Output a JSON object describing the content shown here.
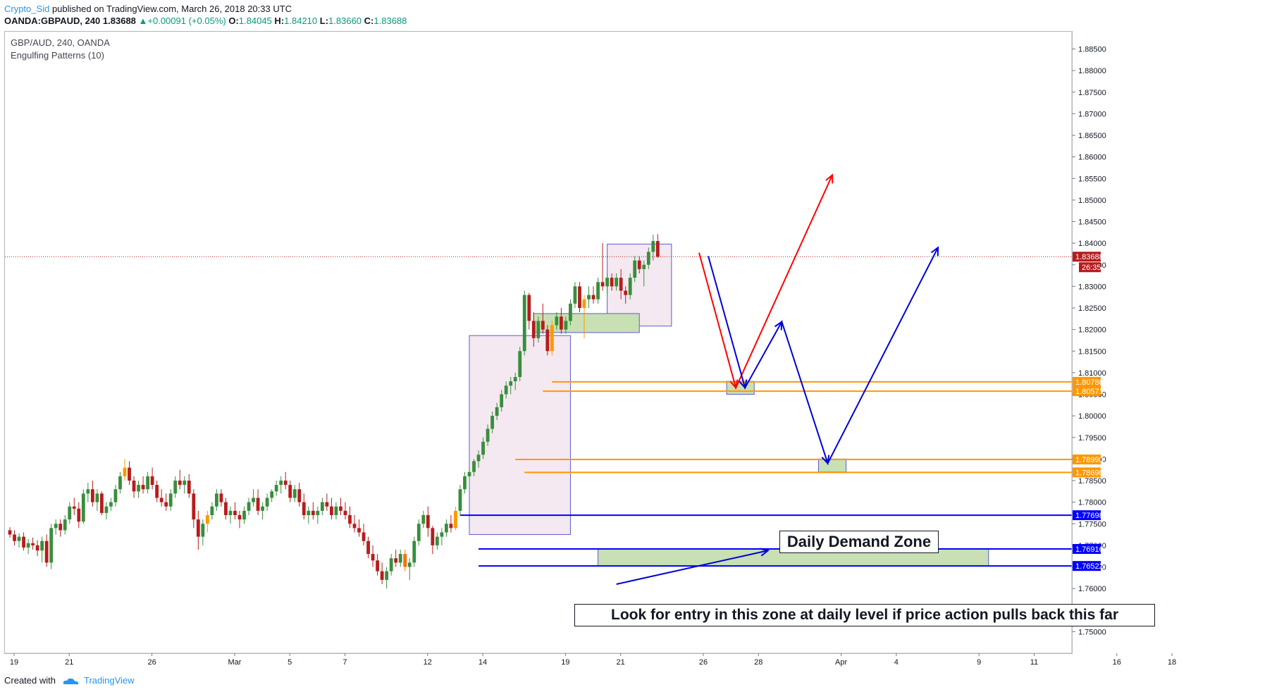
{
  "header": {
    "author": "Crypto_Sid",
    "published": "published on TradingView.com, March 26, 2018 20:33 UTC",
    "symbol": "OANDA:GBPAUD, 240",
    "last": "1.83688",
    "change": "▲+0.00091 (+0.05%)",
    "o_label": "O:",
    "o": "1.84045",
    "h_label": "H:",
    "h": "1.84210",
    "l_label": "L:",
    "l": "1.83660",
    "c_label": "C:",
    "c": "1.83688"
  },
  "legend": {
    "series": "GBP/AUD, 240, OANDA",
    "indicator": "Engulfing Patterns (10)"
  },
  "footer": {
    "created_with": "Created with",
    "brand": "TradingView"
  },
  "annotations": {
    "demand_zone": "Daily Demand Zone",
    "entry_note": "Look for entry in this zone at daily level if price action pulls back this far"
  },
  "chart_data": {
    "type": "candlestick",
    "title": "",
    "ylim": [
      1.745,
      1.889
    ],
    "price_ticks": [
      1.885,
      1.88,
      1.875,
      1.87,
      1.865,
      1.86,
      1.855,
      1.85,
      1.845,
      1.84,
      1.835,
      1.83,
      1.825,
      1.82,
      1.815,
      1.81,
      1.805,
      1.8,
      1.795,
      1.79,
      1.785,
      1.78,
      1.775,
      1.77,
      1.765,
      1.76,
      1.755,
      1.75
    ],
    "price_tick_labels": [
      "1.88500",
      "1.88000",
      "1.87500",
      "1.87000",
      "1.86500",
      "1.86000",
      "1.85500",
      "1.85000",
      "1.84500",
      "1.84000",
      "1.83500",
      "1.83000",
      "1.82500",
      "1.82000",
      "1.81500",
      "1.81000",
      "1.80500",
      "1.80000",
      "1.79500",
      "1.79000",
      "1.78500",
      "1.78000",
      "1.77500",
      "1.77000",
      "1.76500",
      "1.76000",
      "1.75500",
      "1.75000"
    ],
    "time_ticks": [
      "19",
      "21",
      "26",
      "Mar",
      "5",
      "7",
      "12",
      "14",
      "19",
      "21",
      "26",
      "28",
      "Apr",
      "4",
      "9",
      "11",
      "16",
      "18"
    ],
    "time_tick_bars": [
      0,
      12,
      30,
      48,
      60,
      72,
      90,
      102,
      120,
      132,
      150,
      162,
      180,
      192,
      210,
      222,
      240,
      252
    ],
    "current_price": 1.83688,
    "current_price_label": "1.83688",
    "countdown": "26:35",
    "levels": [
      {
        "price": 1.80788,
        "label": "1.80788",
        "color": "#ff9800"
      },
      {
        "price": 1.80571,
        "label": "1.80571",
        "color": "#ff9800"
      },
      {
        "price": 1.7899,
        "label": "1.78990",
        "color": "#ff9800"
      },
      {
        "price": 1.7869,
        "label": "1.78690",
        "color": "#ff9800"
      },
      {
        "price": 1.77698,
        "label": "1.77698",
        "color": "#0000ff"
      },
      {
        "price": 1.76916,
        "label": "1.76916",
        "color": "#0000ff"
      },
      {
        "price": 1.76522,
        "label": "1.76522",
        "color": "#0000ff"
      }
    ],
    "colors": {
      "up": "#388e3c",
      "down": "#b71c1c",
      "engulfing_up": "#ff9800",
      "engulfing_down": "#ff6d00",
      "zone_fill": "#c8e0b4",
      "box_fill": "#f3e5ef",
      "box_stroke": "#5c5cd6",
      "bear_arrow": "#ff0000",
      "bull_arrow": "#0000d8"
    },
    "candles": [
      [
        1.7735,
        1.7742,
        1.7718,
        1.7725
      ],
      [
        1.7725,
        1.7735,
        1.77,
        1.771
      ],
      [
        1.771,
        1.7728,
        1.7695,
        1.772
      ],
      [
        1.772,
        1.773,
        1.7688,
        1.7695
      ],
      [
        1.7695,
        1.7715,
        1.768,
        1.7705
      ],
      [
        1.7705,
        1.7718,
        1.769,
        1.77
      ],
      [
        1.77,
        1.7712,
        1.7675,
        1.7688
      ],
      [
        1.7688,
        1.772,
        1.766,
        1.771
      ],
      [
        1.771,
        1.7725,
        1.765,
        1.766
      ],
      [
        1.766,
        1.775,
        1.7645,
        1.774
      ],
      [
        1.774,
        1.776,
        1.7725,
        1.775
      ],
      [
        1.775,
        1.776,
        1.772,
        1.7735
      ],
      [
        1.7735,
        1.777,
        1.7725,
        1.776
      ],
      [
        1.776,
        1.78,
        1.775,
        1.779
      ],
      [
        1.779,
        1.781,
        1.777,
        1.7785
      ],
      [
        1.7785,
        1.78,
        1.774,
        1.7755
      ],
      [
        1.7755,
        1.783,
        1.775,
        1.782
      ],
      [
        1.782,
        1.7845,
        1.78,
        1.783
      ],
      [
        1.783,
        1.785,
        1.779,
        1.78
      ],
      [
        1.78,
        1.783,
        1.778,
        1.782
      ],
      [
        1.782,
        1.7825,
        1.777,
        1.7775
      ],
      [
        1.7775,
        1.78,
        1.776,
        1.779
      ],
      [
        1.779,
        1.781,
        1.778,
        1.78
      ],
      [
        1.78,
        1.784,
        1.779,
        1.783
      ],
      [
        1.783,
        1.787,
        1.782,
        1.786
      ],
      [
        1.786,
        1.79,
        1.785,
        1.788
      ],
      [
        1.788,
        1.7895,
        1.784,
        1.785
      ],
      [
        1.785,
        1.786,
        1.781,
        1.7825
      ],
      [
        1.7825,
        1.785,
        1.781,
        1.784
      ],
      [
        1.784,
        1.786,
        1.782,
        1.783
      ],
      [
        1.783,
        1.787,
        1.782,
        1.786
      ],
      [
        1.786,
        1.788,
        1.783,
        1.784
      ],
      [
        1.784,
        1.785,
        1.78,
        1.781
      ],
      [
        1.781,
        1.783,
        1.779,
        1.78
      ],
      [
        1.78,
        1.782,
        1.778,
        1.779
      ],
      [
        1.779,
        1.783,
        1.778,
        1.782
      ],
      [
        1.782,
        1.786,
        1.781,
        1.785
      ],
      [
        1.785,
        1.7875,
        1.783,
        1.784
      ],
      [
        1.784,
        1.786,
        1.782,
        1.785
      ],
      [
        1.785,
        1.7865,
        1.781,
        1.782
      ],
      [
        1.782,
        1.783,
        1.774,
        1.776
      ],
      [
        1.776,
        1.778,
        1.769,
        1.772
      ],
      [
        1.772,
        1.776,
        1.77,
        1.775
      ],
      [
        1.775,
        1.778,
        1.773,
        1.777
      ],
      [
        1.777,
        1.78,
        1.776,
        1.779
      ],
      [
        1.779,
        1.783,
        1.778,
        1.782
      ],
      [
        1.782,
        1.783,
        1.779,
        1.78
      ],
      [
        1.78,
        1.781,
        1.776,
        1.777
      ],
      [
        1.777,
        1.779,
        1.775,
        1.778
      ],
      [
        1.778,
        1.78,
        1.776,
        1.777
      ],
      [
        1.777,
        1.778,
        1.774,
        1.776
      ],
      [
        1.776,
        1.779,
        1.775,
        1.778
      ],
      [
        1.778,
        1.781,
        1.777,
        1.78
      ],
      [
        1.78,
        1.783,
        1.779,
        1.781
      ],
      [
        1.781,
        1.783,
        1.777,
        1.778
      ],
      [
        1.778,
        1.78,
        1.776,
        1.779
      ],
      [
        1.779,
        1.782,
        1.778,
        1.781
      ],
      [
        1.781,
        1.783,
        1.78,
        1.7825
      ],
      [
        1.7825,
        1.785,
        1.7815,
        1.784
      ],
      [
        1.784,
        1.786,
        1.782,
        1.785
      ],
      [
        1.785,
        1.787,
        1.783,
        1.784
      ],
      [
        1.784,
        1.785,
        1.78,
        1.781
      ],
      [
        1.781,
        1.784,
        1.78,
        1.783
      ],
      [
        1.783,
        1.7845,
        1.779,
        1.78
      ],
      [
        1.78,
        1.782,
        1.776,
        1.777
      ],
      [
        1.777,
        1.779,
        1.775,
        1.778
      ],
      [
        1.778,
        1.78,
        1.776,
        1.777
      ],
      [
        1.777,
        1.779,
        1.775,
        1.778
      ],
      [
        1.778,
        1.781,
        1.777,
        1.78
      ],
      [
        1.78,
        1.782,
        1.778,
        1.779
      ],
      [
        1.779,
        1.781,
        1.776,
        1.777
      ],
      [
        1.777,
        1.78,
        1.776,
        1.779
      ],
      [
        1.779,
        1.781,
        1.777,
        1.778
      ],
      [
        1.778,
        1.78,
        1.776,
        1.777
      ],
      [
        1.777,
        1.779,
        1.774,
        1.775
      ],
      [
        1.775,
        1.777,
        1.773,
        1.774
      ],
      [
        1.774,
        1.776,
        1.772,
        1.773
      ],
      [
        1.773,
        1.775,
        1.77,
        1.771
      ],
      [
        1.771,
        1.772,
        1.767,
        1.768
      ],
      [
        1.768,
        1.77,
        1.765,
        1.7665
      ],
      [
        1.7665,
        1.768,
        1.763,
        1.764
      ],
      [
        1.764,
        1.766,
        1.761,
        1.762
      ],
      [
        1.762,
        1.765,
        1.76,
        1.764
      ],
      [
        1.764,
        1.768,
        1.763,
        1.767
      ],
      [
        1.767,
        1.769,
        1.765,
        1.766
      ],
      [
        1.766,
        1.769,
        1.765,
        1.768
      ],
      [
        1.768,
        1.769,
        1.764,
        1.765
      ],
      [
        1.765,
        1.767,
        1.762,
        1.766
      ],
      [
        1.766,
        1.772,
        1.765,
        1.771
      ],
      [
        1.771,
        1.776,
        1.77,
        1.775
      ],
      [
        1.775,
        1.778,
        1.774,
        1.777
      ],
      [
        1.777,
        1.779,
        1.772,
        1.774
      ],
      [
        1.774,
        1.7745,
        1.768,
        1.77
      ],
      [
        1.77,
        1.773,
        1.769,
        1.772
      ],
      [
        1.772,
        1.774,
        1.77,
        1.773
      ],
      [
        1.773,
        1.776,
        1.772,
        1.775
      ],
      [
        1.775,
        1.777,
        1.773,
        1.774
      ],
      [
        1.774,
        1.779,
        1.7735,
        1.778
      ],
      [
        1.778,
        1.784,
        1.777,
        1.783
      ],
      [
        1.783,
        1.787,
        1.782,
        1.786
      ],
      [
        1.786,
        1.788,
        1.785,
        1.787
      ],
      [
        1.787,
        1.79,
        1.786,
        1.7895
      ],
      [
        1.7895,
        1.792,
        1.788,
        1.791
      ],
      [
        1.791,
        1.795,
        1.79,
        1.794
      ],
      [
        1.794,
        1.798,
        1.793,
        1.797
      ],
      [
        1.797,
        1.801,
        1.796,
        1.8
      ],
      [
        1.8,
        1.803,
        1.799,
        1.802
      ],
      [
        1.802,
        1.806,
        1.801,
        1.805
      ],
      [
        1.805,
        1.808,
        1.804,
        1.807
      ],
      [
        1.807,
        1.809,
        1.805,
        1.808
      ],
      [
        1.808,
        1.81,
        1.806,
        1.809
      ],
      [
        1.809,
        1.816,
        1.808,
        1.815
      ],
      [
        1.815,
        1.829,
        1.814,
        1.828
      ],
      [
        1.828,
        1.8285,
        1.82,
        1.822
      ],
      [
        1.822,
        1.824,
        1.816,
        1.818
      ],
      [
        1.818,
        1.823,
        1.817,
        1.822
      ],
      [
        1.822,
        1.826,
        1.819,
        1.82
      ],
      [
        1.82,
        1.821,
        1.814,
        1.815
      ],
      [
        1.815,
        1.822,
        1.814,
        1.821
      ],
      [
        1.821,
        1.824,
        1.82,
        1.823
      ],
      [
        1.823,
        1.825,
        1.819,
        1.82
      ],
      [
        1.82,
        1.823,
        1.819,
        1.822
      ],
      [
        1.822,
        1.827,
        1.821,
        1.826
      ],
      [
        1.826,
        1.831,
        1.825,
        1.83
      ],
      [
        1.83,
        1.831,
        1.824,
        1.825
      ],
      [
        1.825,
        1.828,
        1.818,
        1.827
      ],
      [
        1.827,
        1.83,
        1.825,
        1.828
      ],
      [
        1.828,
        1.83,
        1.826,
        1.827
      ],
      [
        1.827,
        1.832,
        1.826,
        1.831
      ],
      [
        1.831,
        1.84,
        1.829,
        1.83
      ],
      [
        1.83,
        1.833,
        1.828,
        1.832
      ],
      [
        1.832,
        1.833,
        1.829,
        1.83
      ],
      [
        1.83,
        1.833,
        1.829,
        1.832
      ],
      [
        1.832,
        1.834,
        1.827,
        1.829
      ],
      [
        1.829,
        1.83,
        1.826,
        1.828
      ],
      [
        1.828,
        1.833,
        1.827,
        1.832
      ],
      [
        1.832,
        1.837,
        1.831,
        1.836
      ],
      [
        1.836,
        1.837,
        1.833,
        1.834
      ],
      [
        1.834,
        1.836,
        1.83,
        1.835
      ],
      [
        1.835,
        1.839,
        1.834,
        1.838
      ],
      [
        1.838,
        1.842,
        1.836,
        1.8405
      ],
      [
        1.8405,
        1.8421,
        1.8366,
        1.8369
      ]
    ],
    "engulfing_bars": [
      25,
      43,
      86,
      97,
      118,
      125,
      143
    ],
    "boxes": [
      {
        "bar_from": 100,
        "bar_to": 122,
        "price_top": 1.8186,
        "price_bottom": 1.7725,
        "kind": "box"
      },
      {
        "bar_from": 130,
        "bar_to": 144,
        "price_top": 1.8398,
        "price_bottom": 1.8208,
        "kind": "box"
      },
      {
        "bar_from": 114,
        "bar_to": 137,
        "price_top": 1.8237,
        "price_bottom": 1.8193,
        "kind": "zone"
      },
      {
        "bar_from": 156,
        "bar_to": 162,
        "price_top": 1.808,
        "price_bottom": 1.805,
        "kind": "zone"
      },
      {
        "bar_from": 176,
        "bar_to": 182,
        "price_top": 1.79,
        "price_bottom": 1.787,
        "kind": "zone"
      },
      {
        "bar_from": 128,
        "bar_to": 213,
        "price_top": 1.7692,
        "price_bottom": 1.7652,
        "kind": "zone"
      }
    ],
    "paths": [
      {
        "kind": "bear_arrow",
        "points": [
          [
            150,
            1.8378
          ],
          [
            158,
            1.8065
          ],
          [
            179,
            1.8558
          ]
        ]
      },
      {
        "kind": "bull_arrow",
        "points": [
          [
            152,
            1.837
          ],
          [
            160,
            1.8065
          ],
          [
            168,
            1.8218
          ],
          [
            178,
            1.789
          ],
          [
            202,
            1.839
          ]
        ]
      },
      {
        "kind": "bull_arrow",
        "points": [
          [
            132,
            1.761
          ],
          [
            165,
            1.7688
          ]
        ]
      }
    ],
    "level_lines": [
      {
        "price": 1.80788,
        "bar_from": 118
      },
      {
        "price": 1.80571,
        "bar_from": 116
      },
      {
        "price": 1.7899,
        "bar_from": 110
      },
      {
        "price": 1.7869,
        "bar_from": 112
      },
      {
        "price": 1.77698,
        "bar_from": 98
      },
      {
        "price": 1.76916,
        "bar_from": 102
      },
      {
        "price": 1.76522,
        "bar_from": 102
      }
    ]
  }
}
